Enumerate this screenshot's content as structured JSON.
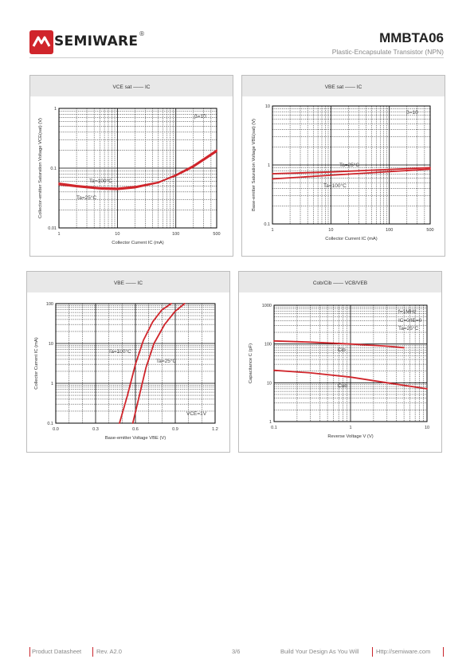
{
  "header": {
    "brand": "SEMIWARE",
    "registered": "®",
    "part_number": "MMBTA06",
    "description": "Plastic-Encapsulate Transistor (NPN)",
    "accent_color": "#d0252b"
  },
  "footer": {
    "left": "Product Datasheet",
    "rev": "Rev. A2.0",
    "page": "3/6",
    "slogan": "Build Your Design As You Will",
    "url": "Http://semiware.com"
  },
  "chart_data": [
    {
      "type": "line",
      "title": "VCE sat —— IC",
      "xlabel": "Collector Current  IC (mA)",
      "ylabel": "Collector-emitter Saturation Voltage  VCE(sat) (V)",
      "xscale": "log",
      "yscale": "log",
      "xlim": [
        1,
        500
      ],
      "ylim": [
        0.01,
        1
      ],
      "xticks": [
        "1",
        "10",
        "100",
        "500"
      ],
      "yticks": [
        "0.01",
        "0.1",
        "1"
      ],
      "annotations": [
        "β=10",
        "Ta=100°C",
        "Ta=25°C"
      ],
      "series": [
        {
          "name": "Ta=100°C",
          "x": [
            1,
            2,
            5,
            10,
            20,
            50,
            100,
            200,
            500
          ],
          "y": [
            0.056,
            0.051,
            0.047,
            0.046,
            0.049,
            0.058,
            0.075,
            0.105,
            0.19
          ]
        },
        {
          "name": "Ta=25°C",
          "x": [
            1,
            2,
            5,
            10,
            20,
            50,
            100,
            200,
            500
          ],
          "y": [
            0.053,
            0.049,
            0.045,
            0.044,
            0.047,
            0.057,
            0.077,
            0.11,
            0.2
          ]
        }
      ]
    },
    {
      "type": "line",
      "title": "VBE sat —— IC",
      "xlabel": "Collector Current  IC (mA)",
      "ylabel": "Base-emitter Saturation Voltage  VBE(sat) (V)",
      "xscale": "log",
      "yscale": "log",
      "xlim": [
        1,
        500
      ],
      "ylim": [
        0.1,
        10
      ],
      "xticks": [
        "1",
        "10",
        "100",
        "500"
      ],
      "yticks": [
        "0.1",
        "1",
        "10"
      ],
      "annotations": [
        "β=10",
        "Ta=25°C",
        "Ta=100°C"
      ],
      "series": [
        {
          "name": "Ta=25°C",
          "x": [
            1,
            10,
            100,
            500
          ],
          "y": [
            0.71,
            0.76,
            0.84,
            0.9
          ]
        },
        {
          "name": "Ta=100°C",
          "x": [
            1,
            10,
            100,
            500
          ],
          "y": [
            0.58,
            0.67,
            0.77,
            0.85
          ]
        }
      ]
    },
    {
      "type": "line",
      "title": "VBE —— IC",
      "xlabel": "Base-emitter Voltage  VBE (V)",
      "ylabel": "Collector Current  IC (mA)",
      "xscale": "linear",
      "yscale": "log",
      "xlim": [
        0,
        1.2
      ],
      "ylim": [
        0.1,
        100
      ],
      "xticks": [
        "0.0",
        "0.3",
        "0.6",
        "0.9",
        "1.2"
      ],
      "yticks": [
        "0.1",
        "1",
        "10",
        "100"
      ],
      "annotations": [
        "Ta=100°C",
        "Ta=25°C",
        "VCE=1V"
      ],
      "series": [
        {
          "name": "Ta=100°C",
          "x": [
            0.48,
            0.54,
            0.6,
            0.66,
            0.73,
            0.8,
            0.87
          ],
          "y": [
            0.1,
            0.5,
            3,
            12,
            35,
            70,
            100
          ]
        },
        {
          "name": "Ta=25°C",
          "x": [
            0.58,
            0.63,
            0.68,
            0.74,
            0.82,
            0.9,
            0.97
          ],
          "y": [
            0.1,
            0.5,
            2.5,
            10,
            30,
            65,
            100
          ]
        }
      ]
    },
    {
      "type": "line",
      "title": "Cob/Cib —— VCB/VEB",
      "xlabel": "Reverse Voltage  V (V)",
      "ylabel": "Capacitance C (pF)",
      "xscale": "log",
      "yscale": "log",
      "xlim": [
        0.1,
        10
      ],
      "ylim": [
        1,
        1000
      ],
      "xticks": [
        "0.1",
        "1",
        "10"
      ],
      "yticks": [
        "1",
        "10",
        "100",
        "1000"
      ],
      "annotations": [
        "f=1MHz",
        "IC=0/IE=0",
        "Ta=25°C",
        "Cib",
        "Cob"
      ],
      "series": [
        {
          "name": "Cib",
          "x": [
            0.1,
            0.3,
            1,
            3,
            5
          ],
          "y": [
            120,
            112,
            100,
            88,
            80
          ]
        },
        {
          "name": "Cob",
          "x": [
            0.1,
            0.3,
            1,
            3,
            10
          ],
          "y": [
            21,
            18,
            14,
            10,
            7
          ]
        }
      ]
    }
  ]
}
